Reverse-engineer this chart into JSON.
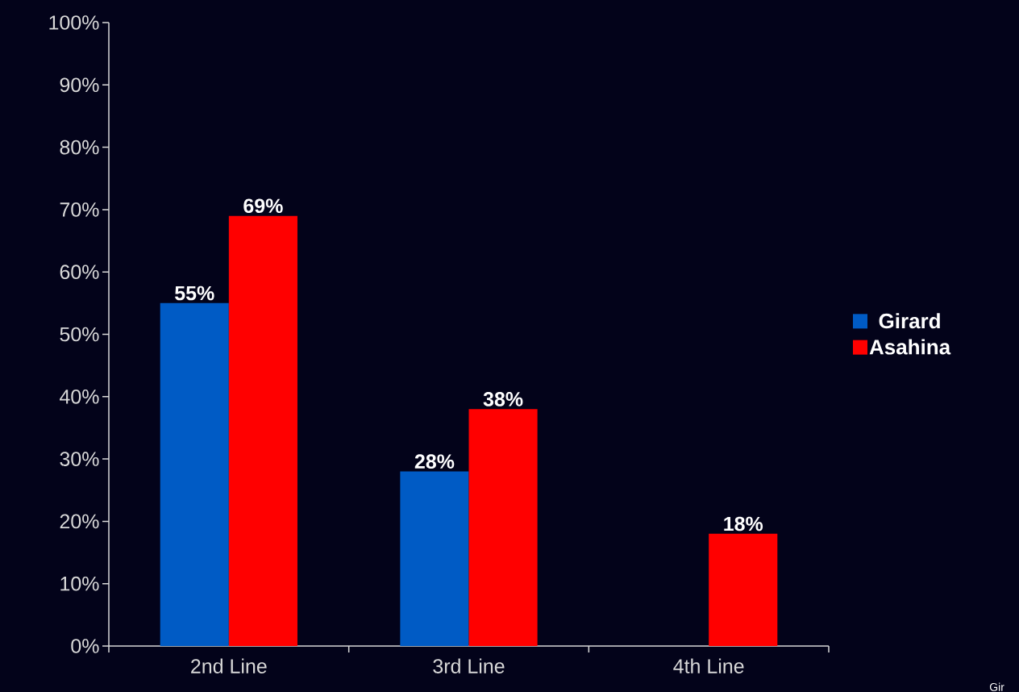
{
  "chart_data": {
    "type": "bar",
    "categories": [
      "2nd Line",
      "3rd Line",
      "4th Line"
    ],
    "series": [
      {
        "name": "Girard",
        "color": "#005bc5",
        "values": [
          55,
          28,
          null
        ],
        "value_labels": [
          "55%",
          "28%",
          null
        ]
      },
      {
        "name": "Asahina",
        "color": "#ff0000",
        "values": [
          69,
          38,
          18
        ],
        "value_labels": [
          "69%",
          "38%",
          "18%"
        ]
      }
    ],
    "ylim": [
      0,
      100
    ],
    "yticks": [
      {
        "value": 0,
        "label": "0%"
      },
      {
        "value": 10,
        "label": "10%"
      },
      {
        "value": 20,
        "label": "20%"
      },
      {
        "value": 30,
        "label": "30%"
      },
      {
        "value": 40,
        "label": "40%"
      },
      {
        "value": 50,
        "label": "50%"
      },
      {
        "value": 60,
        "label": "60%"
      },
      {
        "value": 70,
        "label": "70%"
      },
      {
        "value": 80,
        "label": "80%"
      },
      {
        "value": 90,
        "label": "90%"
      },
      {
        "value": 100,
        "label": "100%"
      }
    ],
    "grid": false,
    "legend": "right",
    "annotations": [
      "Gir"
    ]
  }
}
